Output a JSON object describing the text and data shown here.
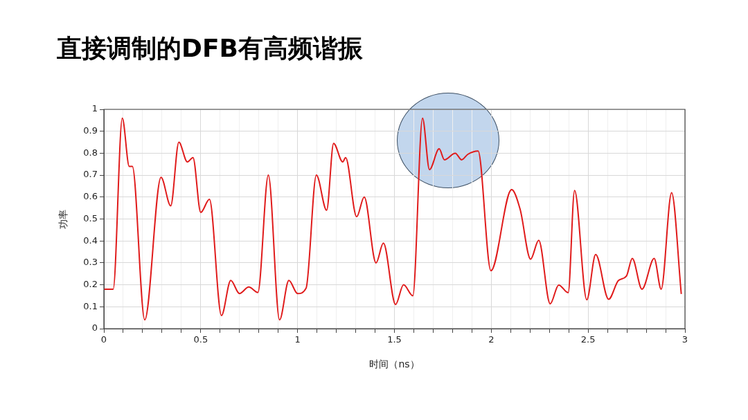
{
  "chart_data": {
    "type": "line",
    "title": "直接调制的DFB有高频谐振",
    "xlabel": "时间（ns）",
    "ylabel": "功率",
    "x": [
      0,
      0.048,
      0.095,
      0.131,
      0.147,
      0.211,
      0.295,
      0.345,
      0.387,
      0.431,
      0.46,
      0.5,
      0.545,
      0.607,
      0.655,
      0.7,
      0.748,
      0.795,
      0.849,
      0.907,
      0.955,
      1.0,
      1.044,
      1.097,
      1.15,
      1.186,
      1.233,
      1.248,
      1.305,
      1.344,
      1.405,
      1.443,
      1.506,
      1.547,
      1.595,
      1.645,
      1.681,
      1.731,
      1.758,
      1.814,
      1.847,
      1.879,
      1.932,
      1.998,
      2.105,
      2.149,
      2.203,
      2.245,
      2.304,
      2.348,
      2.397,
      2.43,
      2.493,
      2.539,
      2.606,
      2.656,
      2.698,
      2.728,
      2.778,
      2.841,
      2.877,
      2.931,
      2.981
    ],
    "series": [
      {
        "color": "#e01b1b",
        "values": [
          0.18,
          0.18,
          0.96,
          0.74,
          0.74,
          0.04,
          0.69,
          0.56,
          0.85,
          0.76,
          0.78,
          0.53,
          0.59,
          0.06,
          0.22,
          0.16,
          0.19,
          0.165,
          0.7,
          0.04,
          0.22,
          0.16,
          0.185,
          0.7,
          0.54,
          0.845,
          0.76,
          0.78,
          0.51,
          0.6,
          0.3,
          0.39,
          0.11,
          0.2,
          0.15,
          0.96,
          0.725,
          0.82,
          0.77,
          0.8,
          0.77,
          0.795,
          0.81,
          0.264,
          0.634,
          0.544,
          0.317,
          0.403,
          0.113,
          0.199,
          0.164,
          0.63,
          0.132,
          0.338,
          0.134,
          0.219,
          0.24,
          0.32,
          0.18,
          0.32,
          0.18,
          0.62,
          0.158
        ]
      }
    ],
    "xlim": [
      0,
      3
    ],
    "xticks": [
      0,
      {
        "value": 0.1,
        "label": null
      },
      {
        "value": 0.2,
        "label": null
      },
      {
        "value": 0.3,
        "label": null
      },
      {
        "value": 0.4,
        "label": null
      },
      0.5,
      {
        "value": 0.6,
        "label": null
      },
      {
        "value": 0.7,
        "label": null
      },
      {
        "value": 0.8,
        "label": null
      },
      {
        "value": 0.9,
        "label": null
      },
      1,
      {
        "value": 1.1,
        "label": null
      },
      {
        "value": 1.2,
        "label": null
      },
      {
        "value": 1.3,
        "label": null
      },
      {
        "value": 1.4,
        "label": null
      },
      1.5,
      {
        "value": 1.6,
        "label": null
      },
      {
        "value": 1.7,
        "label": null
      },
      {
        "value": 1.8,
        "label": null
      },
      {
        "value": 1.9,
        "label": null
      },
      2,
      {
        "value": 2.1,
        "label": null
      },
      {
        "value": 2.2,
        "label": null
      },
      {
        "value": 2.3,
        "label": null
      },
      {
        "value": 2.4,
        "label": null
      },
      2.5,
      {
        "value": 2.6,
        "label": null
      },
      {
        "value": 2.7,
        "label": null
      },
      {
        "value": 2.8,
        "label": null
      },
      {
        "value": 2.9,
        "label": null
      },
      3
    ],
    "ylim": [
      0,
      1
    ],
    "yticks": [
      0,
      0.1,
      0.2,
      0.3,
      0.4,
      0.5,
      0.6,
      0.7,
      0.8,
      0.9,
      1
    ],
    "grid": true,
    "legend": false,
    "marker": "none",
    "line_style": "solid"
  }
}
